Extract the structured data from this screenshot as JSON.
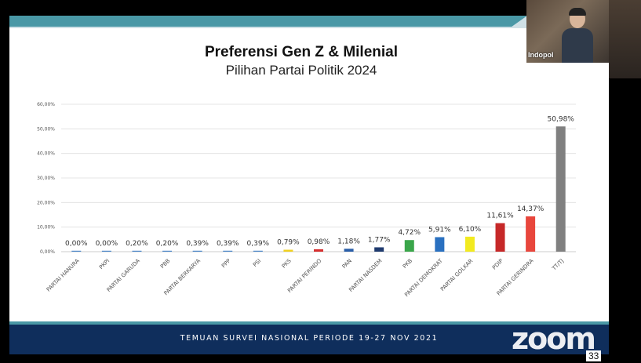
{
  "chart_data": {
    "type": "bar",
    "title": "Preferensi Gen Z & Milenial",
    "subtitle": "Pilihan Partai Politik 2024",
    "categories": [
      "PARTAI HANURA",
      "PKPI",
      "PARTAI GARUDA",
      "PBB",
      "PARTAI BERKARYA",
      "PPP",
      "PSI",
      "PKS",
      "PARTAI PERINDO",
      "PAN",
      "PARTAI NASDEM",
      "PKB",
      "PARTAI DEMOKRAT",
      "PARTAI GOLKAR",
      "PDIP",
      "PARTAI GERINDRA",
      "TT/TJ"
    ],
    "values": [
      0.0,
      0.0,
      0.2,
      0.2,
      0.39,
      0.39,
      0.39,
      0.79,
      0.98,
      1.18,
      1.77,
      4.72,
      5.91,
      6.1,
      11.61,
      14.37,
      50.98
    ],
    "value_labels": [
      "0,00%",
      "0,00%",
      "0,20%",
      "0,20%",
      "0,39%",
      "0,39%",
      "0,39%",
      "0,79%",
      "0,98%",
      "1,18%",
      "1,77%",
      "4,72%",
      "5,91%",
      "6,10%",
      "11,61%",
      "14,37%",
      "50,98%"
    ],
    "bar_colors": [
      "#4a86c8",
      "#4a86c8",
      "#4a86c8",
      "#4a86c8",
      "#4a86c8",
      "#4a86c8",
      "#4a86c8",
      "#f0d020",
      "#d62f2f",
      "#2a5ea8",
      "#1f3a6e",
      "#3aa64a",
      "#2a70c0",
      "#f2ea20",
      "#c62828",
      "#e8463c",
      "#808080"
    ],
    "ylim": [
      0,
      60
    ],
    "yticks": [
      0,
      10,
      20,
      30,
      40,
      50,
      60
    ],
    "ytick_labels": [
      "0,00%",
      "10,00%",
      "20,00%",
      "30,00%",
      "40,00%",
      "50,00%",
      "60,00%"
    ],
    "grid": true,
    "xlabel": "",
    "ylabel": ""
  },
  "footer": {
    "text": "TEMUAN SURVEI NASIONAL PERIODE 19-27 NOV 2021"
  },
  "page_number": "33",
  "zoom_logo": "zoom",
  "video": {
    "participant_name": "Indopol"
  },
  "colors": {
    "footer_bg": "#0f2e5c",
    "accent": "#4a98a6"
  }
}
